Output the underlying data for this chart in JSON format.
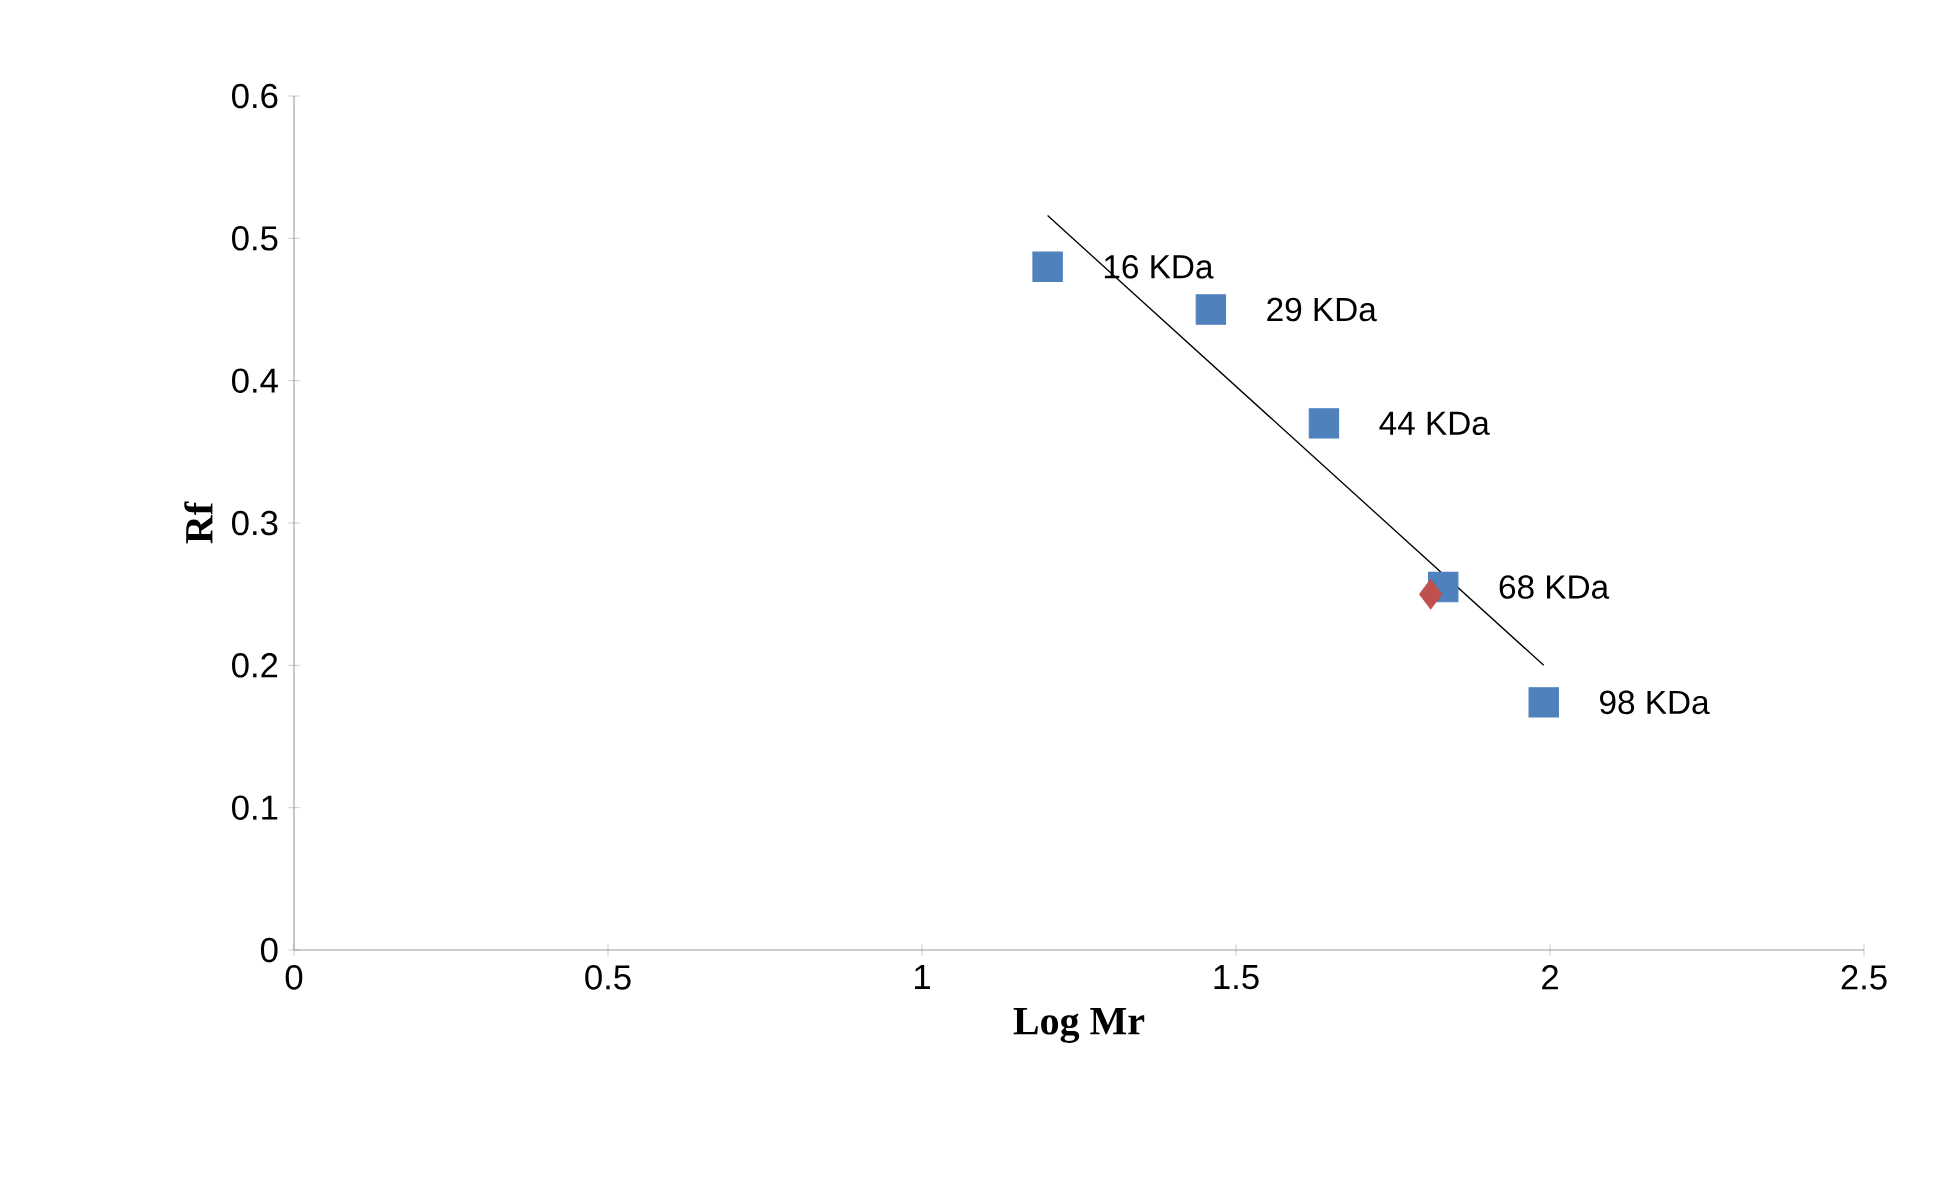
{
  "chart_data": {
    "type": "scatter",
    "xlabel": "Log Mr",
    "ylabel": "Rf",
    "xlim": [
      0,
      2.5
    ],
    "ylim": [
      0,
      0.6
    ],
    "xticks": [
      0,
      0.5,
      1,
      1.5,
      2,
      2.5
    ],
    "yticks": [
      0,
      0.1,
      0.2,
      0.3,
      0.4,
      0.5,
      0.6
    ],
    "grid": false,
    "series": [
      {
        "marker": "square",
        "color": "#4f81bd",
        "x": [
          1.2,
          1.46,
          1.64,
          1.83,
          1.99
        ],
        "values": [
          0.48,
          0.45,
          0.37,
          0.255,
          0.174
        ]
      },
      {
        "marker": "diamond",
        "color": "#c0504d",
        "x": [
          1.81
        ],
        "values": [
          0.25
        ]
      },
      {
        "type": "line",
        "marker": "none",
        "color": "#000000",
        "x": [
          1.2,
          1.99
        ],
        "values": [
          0.516,
          0.2
        ]
      }
    ],
    "annotations": [
      {
        "text": "16 KDa",
        "x": 1.2,
        "y": 0.48
      },
      {
        "text": "29 KDa",
        "x": 1.46,
        "y": 0.45
      },
      {
        "text": "44 KDa",
        "x": 1.64,
        "y": 0.37
      },
      {
        "text": "68 KDa",
        "x": 1.83,
        "y": 0.255
      },
      {
        "text": "98 KDa",
        "x": 1.99,
        "y": 0.174
      }
    ]
  }
}
